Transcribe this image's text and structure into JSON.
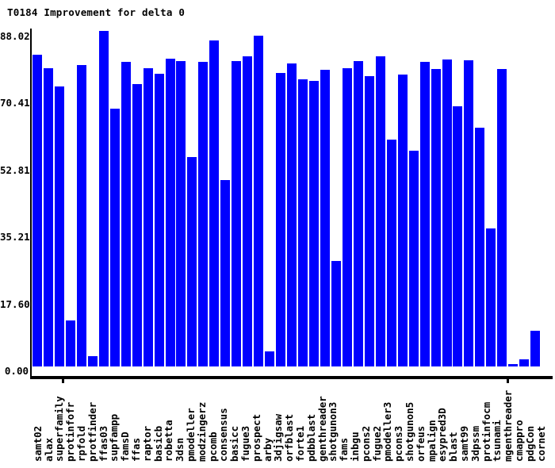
{
  "title": "T0184 Improvement for delta 0",
  "colors": {
    "bar": "#0000ff",
    "axis": "#000000",
    "background": "#ffffff",
    "text": "#000000"
  },
  "chart_data": {
    "type": "bar",
    "title": "T0184 Improvement for delta 0",
    "xlabel": "",
    "ylabel": "",
    "grid": false,
    "legend_position": "none",
    "ylim": [
      0,
      88.02
    ],
    "ytick_labels": [
      "0.00",
      "17.60",
      "35.21",
      "52.81",
      "70.41",
      "88.02"
    ],
    "ytick_values": [
      0,
      17.6,
      35.21,
      52.81,
      70.41,
      88.02
    ],
    "bar_color": "#0000ff",
    "categories": [
      "samt02",
      "alax",
      "superfamily",
      "protinfofr",
      "rpfold",
      "protfinder",
      "ffas03",
      "supfampp",
      "famsD",
      "ffas",
      "raptor",
      "basicb",
      "robetta",
      "3dsn",
      "pmodeller",
      "modzingerz",
      "pcomb",
      "consensus",
      "basicc",
      "fugue3",
      "prospect",
      "arby",
      "3djigsaw",
      "orfblast",
      "forte1",
      "pdbblast",
      "genthreader",
      "shotgunon3",
      "fams",
      "inbgu",
      "pcons2",
      "fugue2",
      "pmodeller3",
      "pcons3",
      "shotgunon5",
      "orfeus",
      "mpalign",
      "esypred3D",
      "blast",
      "samt99",
      "3dpssm",
      "protinfocm",
      "tsunami",
      "mgenthreader",
      "cmappro",
      "pdgCon",
      "cornet"
    ],
    "values": [
      81.9,
      78.3,
      73.5,
      12.1,
      79.2,
      2.7,
      88.02,
      67.7,
      80.0,
      74.2,
      78.3,
      76.8,
      80.8,
      80.2,
      55.0,
      80.0,
      85.6,
      49.0,
      80.3,
      81.4,
      86.9,
      4.0,
      77.1,
      79.6,
      75.5,
      74.9,
      77.9,
      27.8,
      78.4,
      80.2,
      76.2,
      81.4,
      59.6,
      76.7,
      56.7,
      79.9,
      78.1,
      80.6,
      68.3,
      80.5,
      62.8,
      36.3,
      78.1,
      0.6,
      1.8,
      9.4,
      0.0
    ]
  }
}
